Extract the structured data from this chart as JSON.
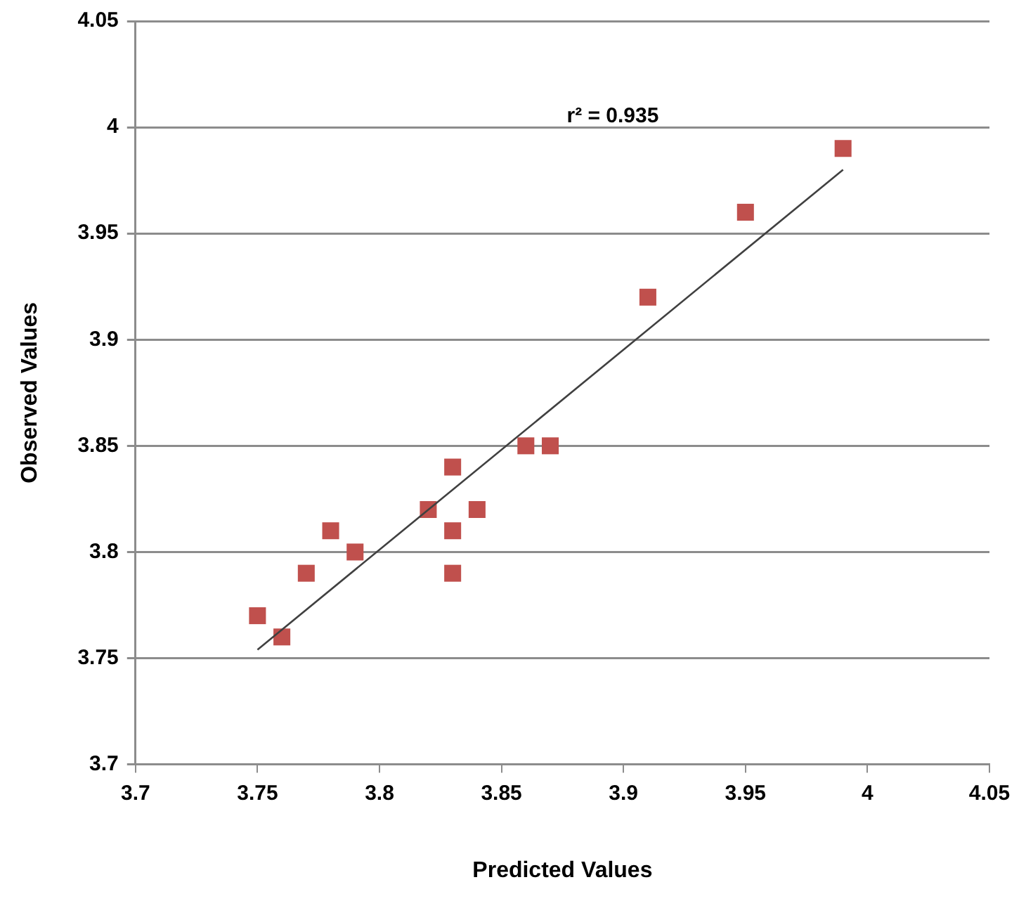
{
  "chart_data": {
    "type": "scatter",
    "xlabel": "Predicted Values",
    "ylabel": "Observed Values",
    "annotations": [
      "r² = 0.935"
    ],
    "marker": "square",
    "grid": "y",
    "legend": false,
    "xlim": [
      3.7,
      4.05
    ],
    "xticks": [
      3.7,
      3.75,
      3.8,
      3.85,
      3.9,
      3.95,
      4,
      4.05
    ],
    "ylim": [
      3.7,
      4.05
    ],
    "yticks": [
      3.7,
      3.75,
      3.8,
      3.85,
      3.9,
      3.95,
      4,
      4.05
    ],
    "series": [
      {
        "color": "#c0504d",
        "x": [
          3.75,
          3.76,
          3.77,
          3.78,
          3.79,
          3.82,
          3.83,
          3.83,
          3.83,
          3.84,
          3.86,
          3.87,
          3.91,
          3.95,
          3.99
        ],
        "values": [
          3.77,
          3.76,
          3.79,
          3.81,
          3.8,
          3.82,
          3.84,
          3.81,
          3.79,
          3.82,
          3.85,
          3.85,
          3.92,
          3.96,
          3.99
        ]
      },
      {
        "type": "line",
        "color": "#404040",
        "marker": "none",
        "x": [
          3.75,
          3.99
        ],
        "values": [
          3.754,
          3.98
        ]
      }
    ]
  }
}
